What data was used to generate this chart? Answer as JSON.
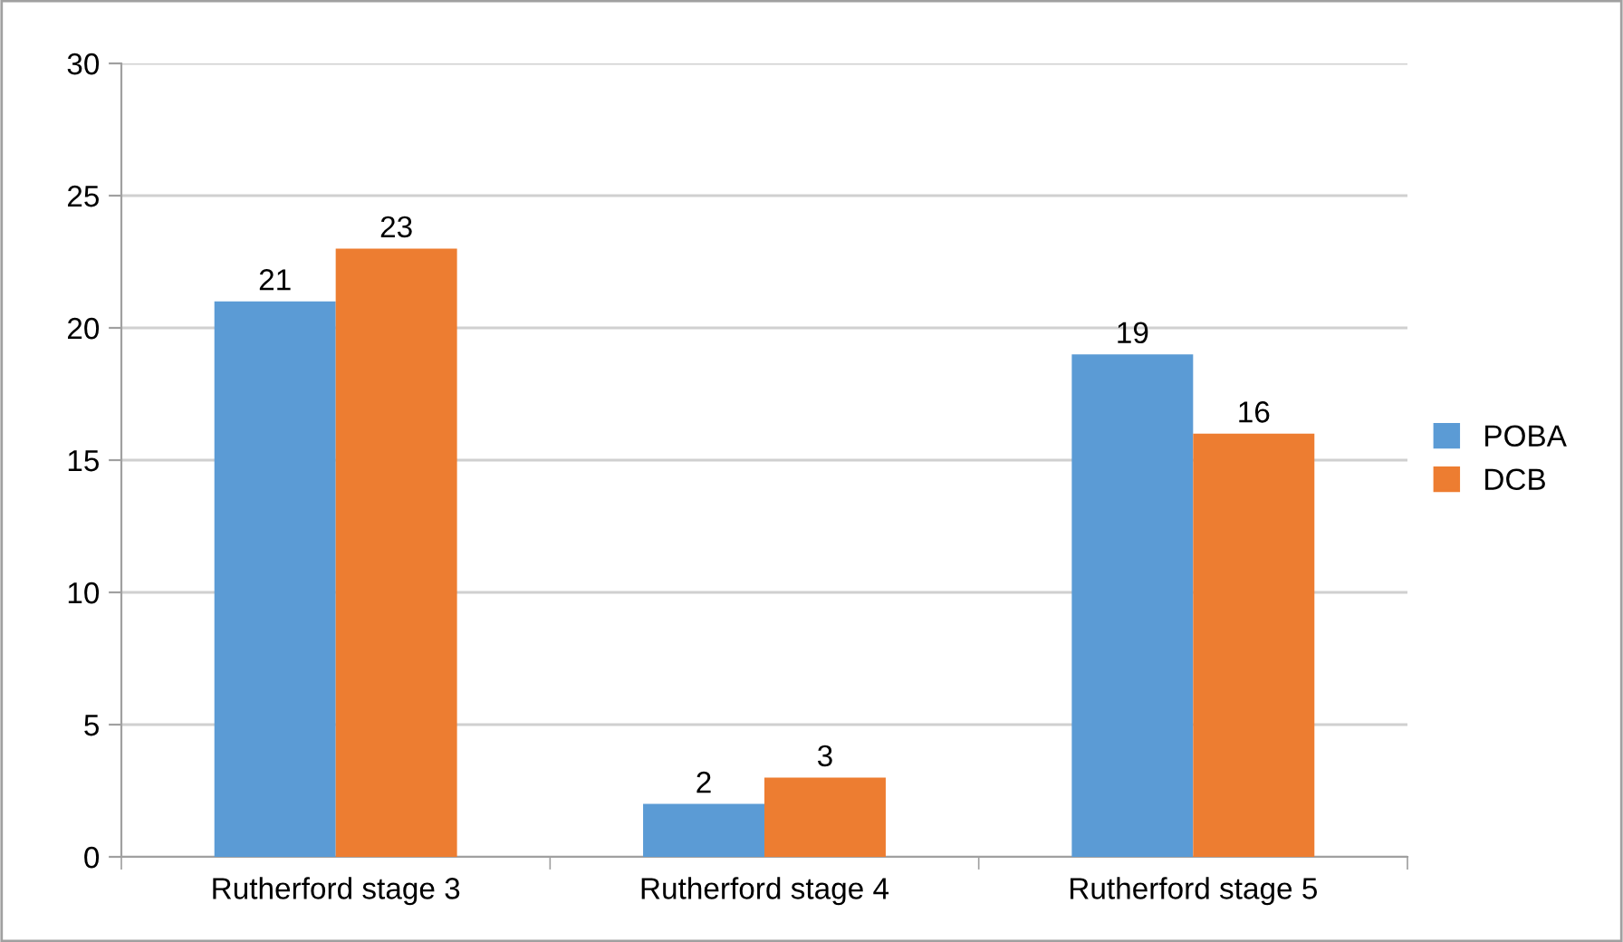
{
  "chart_data": {
    "type": "bar",
    "categories": [
      "Rutherford stage 3",
      "Rutherford stage 4",
      "Rutherford stage 5"
    ],
    "series": [
      {
        "name": "POBA",
        "color": "#5b9bd5",
        "values": [
          21,
          2,
          19
        ]
      },
      {
        "name": "DCB",
        "color": "#ed7d31",
        "values": [
          23,
          3,
          16
        ]
      }
    ],
    "ylim": [
      0,
      30
    ],
    "yticks": [
      0,
      5,
      10,
      15,
      20,
      25,
      30
    ],
    "grid": "y",
    "legend": "right",
    "data_labels": true
  }
}
